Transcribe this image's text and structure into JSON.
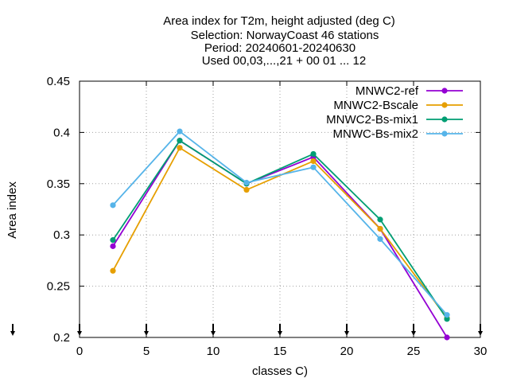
{
  "chart_data": {
    "type": "line",
    "title_lines": [
      "Area index  for T2m, height adjusted (deg C)",
      "Selection: NorwayCoast     46 stations",
      "Period: 20240601-20240630",
      "Used 00,03,...,21 + 00 01 ... 12"
    ],
    "xlabel": "classes C)",
    "ylabel": "Area index",
    "xlim": [
      0,
      30
    ],
    "ylim": [
      0.2,
      0.45
    ],
    "xticks": [
      "0",
      "5",
      "10",
      "15",
      "20",
      "25",
      "30"
    ],
    "yticks": [
      "0.2",
      "0.25",
      "0.3",
      "0.35",
      "0.4",
      "0.45"
    ],
    "grid": true,
    "legend_position": "top-right",
    "x": [
      2.5,
      7.5,
      12.5,
      17.5,
      22.5,
      27.5
    ],
    "series": [
      {
        "name": "MNWC2-ref",
        "color": "#9400d3",
        "marker": "filled-circle",
        "values": [
          0.289,
          0.392,
          0.35,
          0.376,
          0.306,
          0.2
        ]
      },
      {
        "name": "MNWC2-Bscale",
        "color": "#e69f00",
        "marker": "filled-circle",
        "values": [
          0.265,
          0.385,
          0.344,
          0.372,
          0.306,
          0.219
        ]
      },
      {
        "name": "MNWC2-Bs-mix1",
        "color": "#009e73",
        "marker": "filled-circle",
        "values": [
          0.295,
          0.392,
          0.35,
          0.379,
          0.315,
          0.218
        ]
      },
      {
        "name": "MNWC-Bs-mix2",
        "color": "#56b4e9",
        "marker": "filled-circle",
        "values": [
          0.329,
          0.401,
          0.351,
          0.366,
          0.296,
          0.222
        ]
      }
    ],
    "count_markers_x": [
      0,
      5,
      10,
      15,
      20,
      25,
      30
    ],
    "count_marker_extra": "left of axis"
  }
}
